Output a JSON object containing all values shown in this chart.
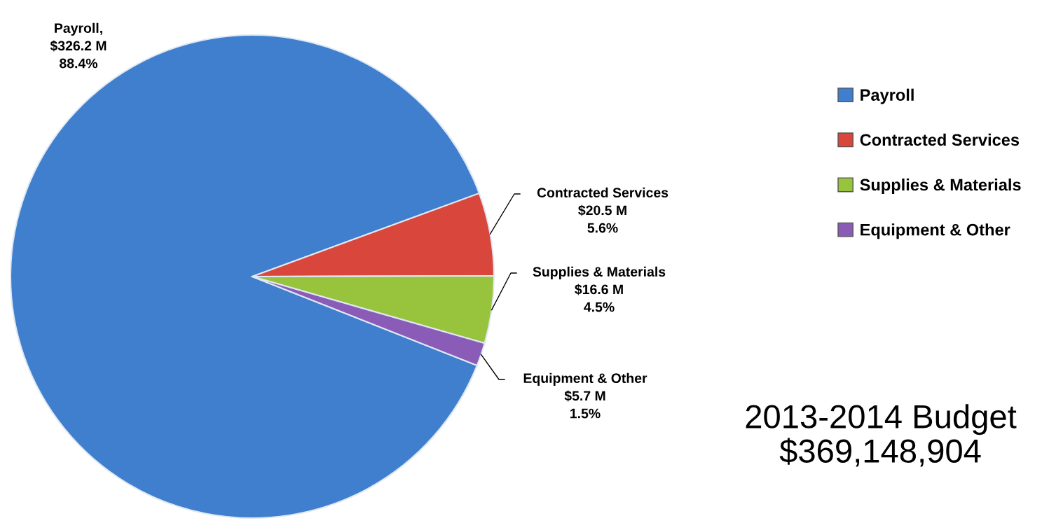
{
  "chart_data": {
    "type": "pie",
    "title": "2013-2014 Budget\n$369,148,904",
    "categories": [
      "Payroll",
      "Contracted Services",
      "Supplies & Materials",
      "Equipment & Other"
    ],
    "values": [
      326.2,
      20.5,
      16.6,
      5.7
    ],
    "colors": [
      "#3f7fce",
      "#d9463b",
      "#98c33c",
      "#8a5cb8"
    ],
    "value_labels": [
      "Payroll,\n$326.2 M\n88.4%",
      "Contracted Services\n$20.5 M\n5.6%",
      "Supplies & Materials\n$16.6 M\n4.5%",
      "Equipment & Other\n$5.7 M\n1.5%"
    ],
    "legend": "right"
  }
}
